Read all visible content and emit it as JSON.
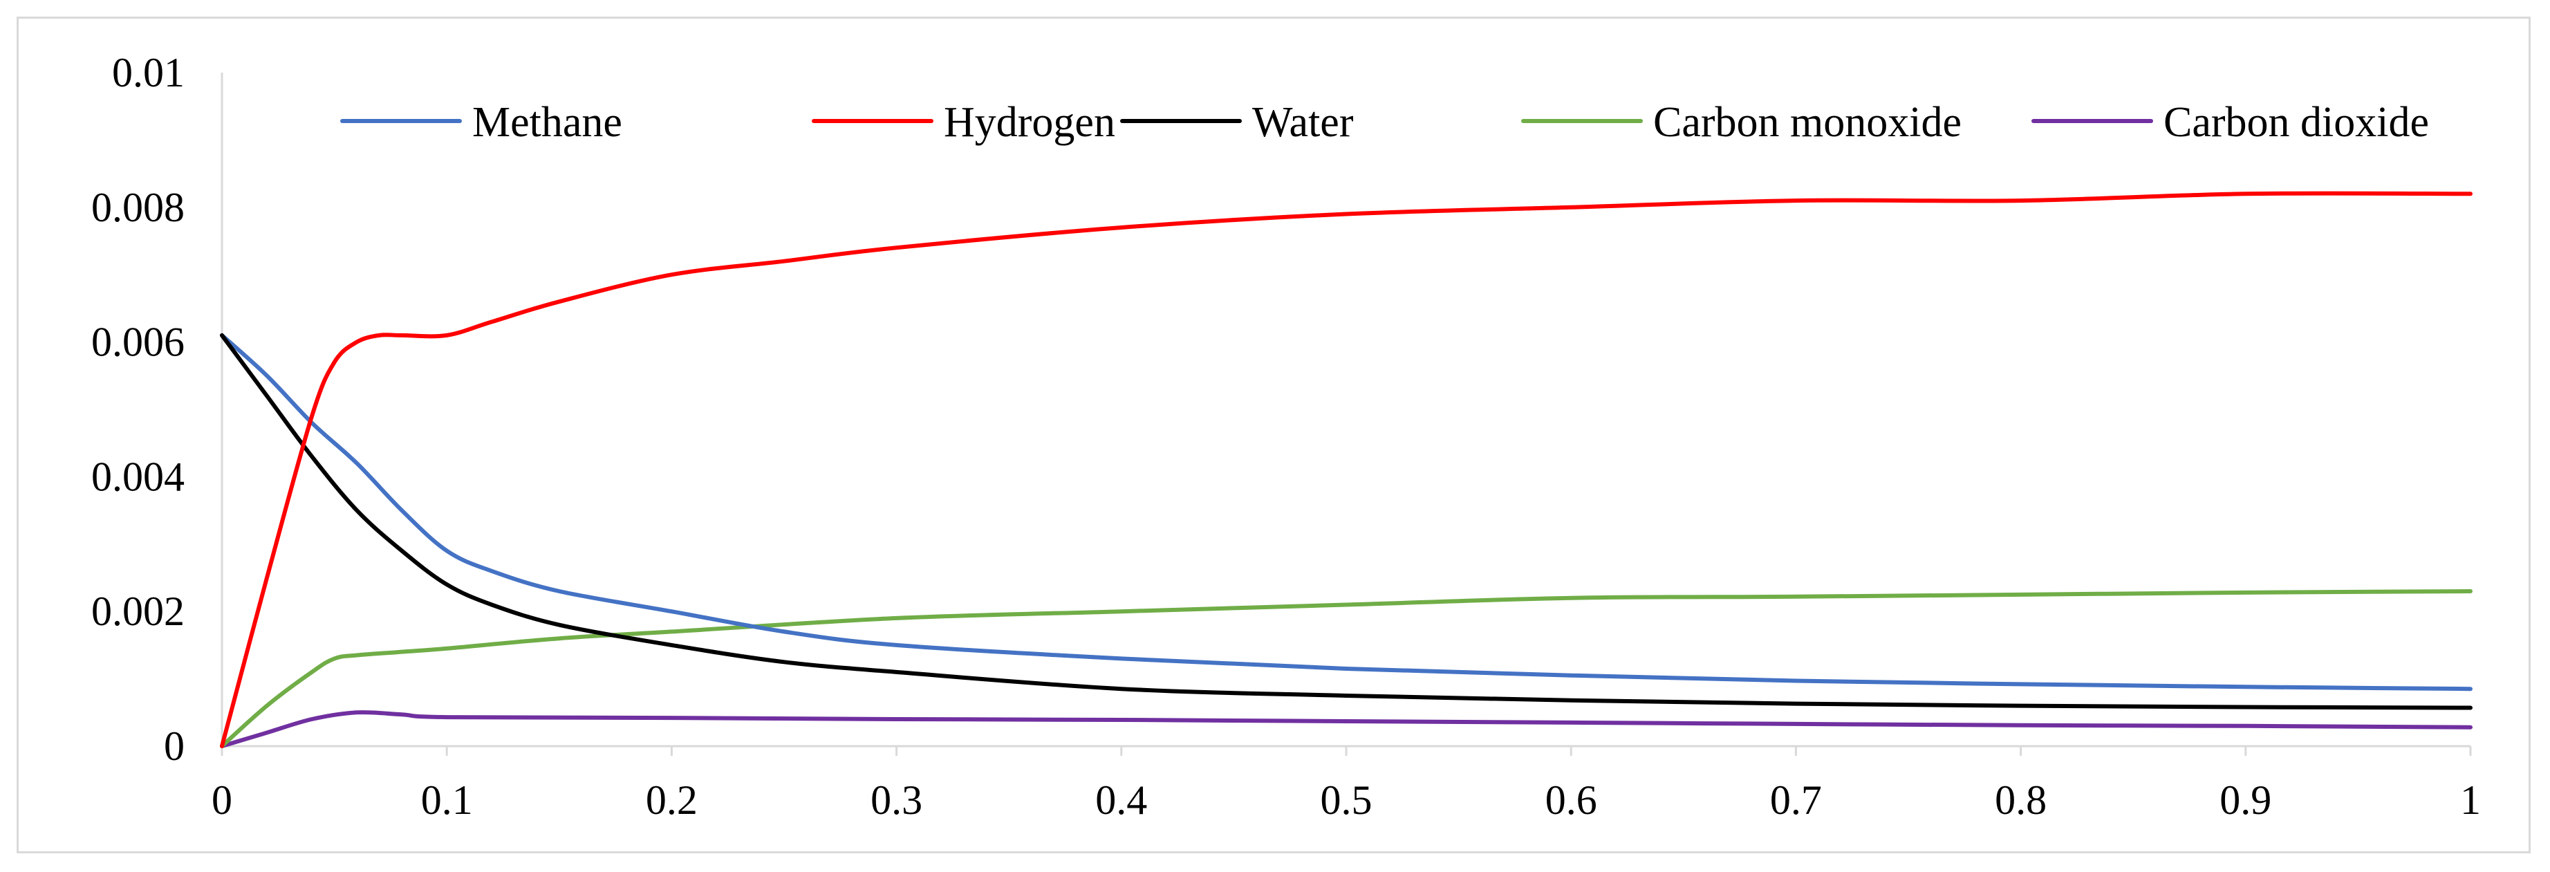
{
  "chart_data": {
    "type": "line",
    "title": "",
    "xlabel": "",
    "ylabel": "",
    "xlim": [
      0,
      1
    ],
    "ylim": [
      0,
      0.01
    ],
    "x_ticks": [
      "0",
      "0.1",
      "0.2",
      "0.3",
      "0.4",
      "0.5",
      "0.6",
      "0.7",
      "0.8",
      "0.9",
      "1"
    ],
    "y_ticks": [
      "0",
      "0.002",
      "0.004",
      "0.006",
      "0.008",
      "0.01"
    ],
    "legend_position": "top",
    "grid": false,
    "series": [
      {
        "name": "Methane",
        "color": "#4472c4",
        "x": [
          0,
          0.02,
          0.04,
          0.06,
          0.08,
          0.1,
          0.12,
          0.15,
          0.2,
          0.25,
          0.3,
          0.4,
          0.5,
          0.6,
          0.7,
          0.8,
          0.9,
          1.0
        ],
        "y": [
          0.0061,
          0.0055,
          0.0048,
          0.0042,
          0.0035,
          0.0029,
          0.0026,
          0.0023,
          0.002,
          0.0017,
          0.0015,
          0.0013,
          0.00115,
          0.00105,
          0.00097,
          0.00092,
          0.00088,
          0.00085
        ]
      },
      {
        "name": "Hydrogen",
        "color": "#ff0000",
        "x": [
          0,
          0.02,
          0.04,
          0.05,
          0.06,
          0.07,
          0.08,
          0.1,
          0.12,
          0.15,
          0.2,
          0.25,
          0.3,
          0.4,
          0.5,
          0.6,
          0.7,
          0.8,
          0.9,
          1.0
        ],
        "y": [
          0,
          0.0025,
          0.0049,
          0.0057,
          0.006,
          0.0061,
          0.0061,
          0.0061,
          0.0063,
          0.0066,
          0.007,
          0.0072,
          0.0074,
          0.0077,
          0.0079,
          0.008,
          0.0081,
          0.0081,
          0.0082,
          0.0082
        ]
      },
      {
        "name": "Water",
        "color": "#000000",
        "x": [
          0,
          0.02,
          0.04,
          0.06,
          0.08,
          0.1,
          0.12,
          0.15,
          0.2,
          0.25,
          0.3,
          0.4,
          0.5,
          0.6,
          0.7,
          0.8,
          0.9,
          1.0
        ],
        "y": [
          0.0061,
          0.0052,
          0.0043,
          0.0035,
          0.0029,
          0.0024,
          0.0021,
          0.0018,
          0.0015,
          0.00125,
          0.0011,
          0.00085,
          0.00075,
          0.00068,
          0.00063,
          0.0006,
          0.00058,
          0.00057
        ]
      },
      {
        "name": "Carbon monoxide",
        "color": "#70ad47",
        "x": [
          0,
          0.02,
          0.04,
          0.05,
          0.06,
          0.08,
          0.1,
          0.15,
          0.2,
          0.3,
          0.4,
          0.5,
          0.6,
          0.7,
          0.8,
          0.9,
          1.0
        ],
        "y": [
          0,
          0.0006,
          0.0011,
          0.0013,
          0.00135,
          0.0014,
          0.00145,
          0.0016,
          0.0017,
          0.0019,
          0.002,
          0.0021,
          0.0022,
          0.00222,
          0.00225,
          0.00228,
          0.0023
        ]
      },
      {
        "name": "Carbon dioxide",
        "color": "#7030a0",
        "x": [
          0,
          0.02,
          0.04,
          0.06,
          0.08,
          0.1,
          0.2,
          0.3,
          0.4,
          0.5,
          0.6,
          0.7,
          0.8,
          0.9,
          1.0
        ],
        "y": [
          0,
          0.0002,
          0.0004,
          0.0005,
          0.00047,
          0.00043,
          0.00042,
          0.0004,
          0.00039,
          0.00037,
          0.00035,
          0.00033,
          0.00031,
          0.0003,
          0.00028
        ]
      }
    ]
  }
}
